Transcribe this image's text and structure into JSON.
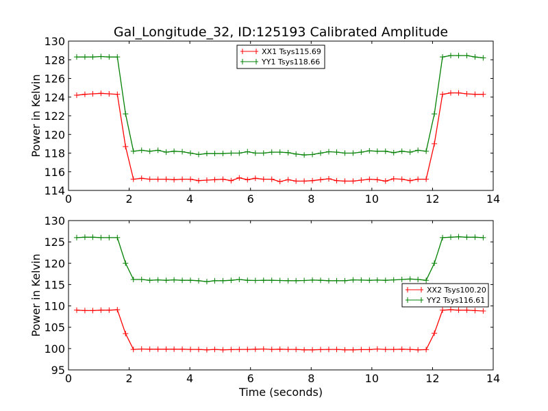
{
  "chart_data": [
    {
      "type": "line",
      "title": "Gal_Longitude_32, ID:125193 Calibrated Amplitude",
      "xlabel": "",
      "ylabel": "Power in Kelvin",
      "xlim": [
        0,
        14
      ],
      "ylim": [
        114,
        130
      ],
      "xticks": [
        0,
        2,
        4,
        6,
        8,
        10,
        12,
        14
      ],
      "yticks": [
        114,
        116,
        118,
        120,
        122,
        124,
        126,
        128,
        130
      ],
      "legend_position": "top-center",
      "x": [
        0.27,
        0.54,
        0.8,
        1.07,
        1.34,
        1.61,
        1.88,
        2.14,
        2.41,
        2.68,
        2.95,
        3.22,
        3.48,
        3.75,
        4.02,
        4.29,
        4.56,
        4.82,
        5.09,
        5.36,
        5.63,
        5.9,
        6.16,
        6.43,
        6.7,
        6.97,
        7.24,
        7.5,
        7.77,
        8.04,
        8.31,
        8.58,
        8.84,
        9.11,
        9.38,
        9.65,
        9.92,
        10.18,
        10.45,
        10.72,
        10.99,
        11.26,
        11.52,
        11.79,
        12.06,
        12.33,
        12.6,
        12.86,
        13.13,
        13.4,
        13.67
      ],
      "series": [
        {
          "name": "XX1 Tsys115.69",
          "color": "#ff0000",
          "values": [
            124.2,
            124.3,
            124.35,
            124.4,
            124.35,
            124.3,
            118.7,
            115.2,
            115.3,
            115.2,
            115.2,
            115.2,
            115.15,
            115.2,
            115.2,
            115.05,
            115.1,
            115.15,
            115.2,
            115.05,
            115.35,
            115.15,
            115.3,
            115.2,
            115.2,
            114.95,
            115.15,
            115.0,
            115.0,
            115.05,
            115.15,
            115.25,
            115.05,
            115.0,
            115.0,
            115.1,
            115.2,
            115.15,
            115.0,
            115.25,
            115.2,
            115.05,
            115.2,
            115.2,
            119.0,
            124.3,
            124.45,
            124.45,
            124.35,
            124.3,
            124.3
          ]
        },
        {
          "name": "YY1 Tsys118.66",
          "color": "#008000",
          "values": [
            128.3,
            128.3,
            128.3,
            128.35,
            128.3,
            128.3,
            122.2,
            118.2,
            118.3,
            118.2,
            118.3,
            118.1,
            118.2,
            118.15,
            118.0,
            117.85,
            117.95,
            117.95,
            117.95,
            118.0,
            118.0,
            118.15,
            118.0,
            118.0,
            118.1,
            118.1,
            118.05,
            117.9,
            117.8,
            117.85,
            118.0,
            118.15,
            118.1,
            118.0,
            118.0,
            118.1,
            118.25,
            118.2,
            118.2,
            118.05,
            118.2,
            118.1,
            118.3,
            118.2,
            122.2,
            128.3,
            128.45,
            128.45,
            128.45,
            128.3,
            128.2
          ]
        }
      ]
    },
    {
      "type": "line",
      "title": "",
      "xlabel": "Time (seconds)",
      "ylabel": "Power in Kelvin",
      "xlim": [
        0,
        14
      ],
      "ylim": [
        95,
        130
      ],
      "xticks": [
        0,
        2,
        4,
        6,
        8,
        10,
        12,
        14
      ],
      "yticks": [
        95,
        100,
        105,
        110,
        115,
        120,
        125,
        130
      ],
      "legend_position": "center-right",
      "x": [
        0.27,
        0.54,
        0.8,
        1.07,
        1.34,
        1.61,
        1.88,
        2.14,
        2.41,
        2.68,
        2.95,
        3.22,
        3.48,
        3.75,
        4.02,
        4.29,
        4.56,
        4.82,
        5.09,
        5.36,
        5.63,
        5.9,
        6.16,
        6.43,
        6.7,
        6.97,
        7.24,
        7.5,
        7.77,
        8.04,
        8.31,
        8.58,
        8.84,
        9.11,
        9.38,
        9.65,
        9.92,
        10.18,
        10.45,
        10.72,
        10.99,
        11.26,
        11.52,
        11.79,
        12.06,
        12.33,
        12.6,
        12.86,
        13.13,
        13.4,
        13.67
      ],
      "series": [
        {
          "name": "XX2 Tsys100.20",
          "color": "#ff0000",
          "values": [
            109.0,
            108.9,
            108.9,
            109.0,
            109.0,
            109.1,
            103.5,
            99.8,
            99.9,
            99.85,
            99.85,
            99.85,
            99.85,
            99.85,
            99.8,
            99.8,
            99.7,
            99.8,
            99.7,
            99.75,
            99.8,
            99.8,
            99.85,
            99.9,
            99.8,
            99.85,
            99.8,
            99.8,
            99.7,
            99.7,
            99.75,
            99.8,
            99.8,
            99.7,
            99.7,
            99.75,
            99.75,
            99.9,
            99.8,
            99.8,
            99.85,
            99.8,
            99.7,
            99.75,
            103.6,
            109.0,
            109.1,
            109.0,
            109.0,
            108.9,
            108.8
          ]
        },
        {
          "name": "YY2 Tsys116.61",
          "color": "#008000",
          "values": [
            126.0,
            126.1,
            126.1,
            126.0,
            126.0,
            126.0,
            120.0,
            116.2,
            116.2,
            116.0,
            116.1,
            116.0,
            116.1,
            116.0,
            116.0,
            115.9,
            115.7,
            115.9,
            115.9,
            116.0,
            116.2,
            116.0,
            115.95,
            116.0,
            116.0,
            115.95,
            115.9,
            115.9,
            115.95,
            116.05,
            116.0,
            115.9,
            115.9,
            115.9,
            116.1,
            116.05,
            116.0,
            116.05,
            116.0,
            116.1,
            116.2,
            116.3,
            116.2,
            116.0,
            120.0,
            126.0,
            126.1,
            126.2,
            126.1,
            126.1,
            126.0
          ]
        }
      ]
    }
  ]
}
